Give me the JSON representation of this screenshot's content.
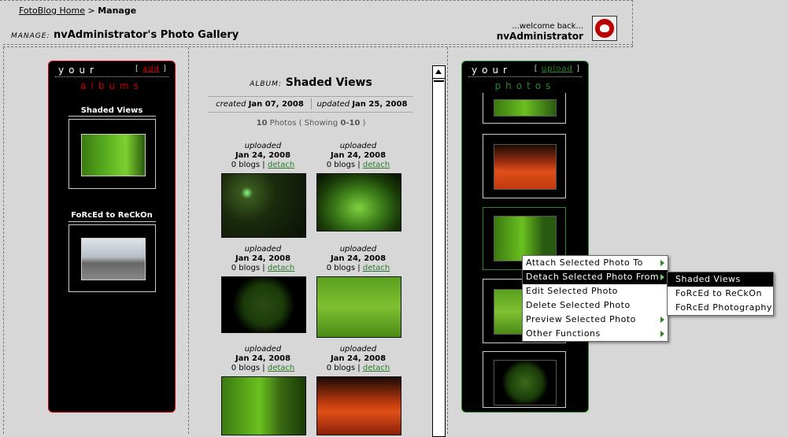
{
  "breadcrumb": {
    "home": "FotoBlog Home",
    "sep": ">",
    "current": "Manage"
  },
  "header": {
    "manage_label": "MANAGE:",
    "gallery_title": "nvAdministrator's Photo Gallery",
    "welcome": "...welcome back...",
    "username": "nvAdministrator"
  },
  "albums_panel": {
    "your": "your",
    "add_open": "[",
    "add": "add",
    "add_close": "]",
    "subtitle": "albums",
    "albums": [
      {
        "title": "Shaded Views"
      },
      {
        "title": "FoRcEd to ReCkOn"
      }
    ]
  },
  "photos_panel": {
    "your": "your",
    "upload_open": "[",
    "upload": "upload",
    "upload_close": "]",
    "subtitle": "photos"
  },
  "album": {
    "label": "ALBUM:",
    "name": "Shaded Views",
    "created_label": "created",
    "created": "Jan 07, 2008",
    "updated_label": "updated",
    "updated": "Jan 25, 2008",
    "count": "10",
    "count_text": "Photos ( Showing",
    "range": "0-10",
    "close": ")"
  },
  "photos": [
    {
      "uploaded": "uploaded",
      "date": "Jan 24, 2008",
      "blogs": "0 blogs |",
      "detach": "detach"
    },
    {
      "uploaded": "uploaded",
      "date": "Jan 24, 2008",
      "blogs": "0 blogs |",
      "detach": "detach"
    },
    {
      "uploaded": "uploaded",
      "date": "Jan 24, 2008",
      "blogs": "0 blogs |",
      "detach": "detach"
    },
    {
      "uploaded": "uploaded",
      "date": "Jan 24, 2008",
      "blogs": "0 blogs |",
      "detach": "detach"
    },
    {
      "uploaded": "uploaded",
      "date": "Jan 24, 2008",
      "blogs": "0 blogs |",
      "detach": "detach"
    },
    {
      "uploaded": "uploaded",
      "date": "Jan 24, 2008",
      "blogs": "0 blogs |",
      "detach": "detach"
    }
  ],
  "context_menu": {
    "items": [
      "Attach Selected Photo To",
      "Detach Selected Photo From",
      "Edit Selected Photo",
      "Delete Selected Photo",
      "Preview Selected Photo",
      "Other Functions"
    ]
  },
  "submenu": {
    "items": [
      "Shaded Views",
      "FoRcEd to ReCkOn",
      "FoRcEd Photography"
    ]
  },
  "colors": {
    "albums_accent": "#cc0000",
    "photos_accent": "#2a8a2a",
    "link_green": "#2a7a2a"
  }
}
